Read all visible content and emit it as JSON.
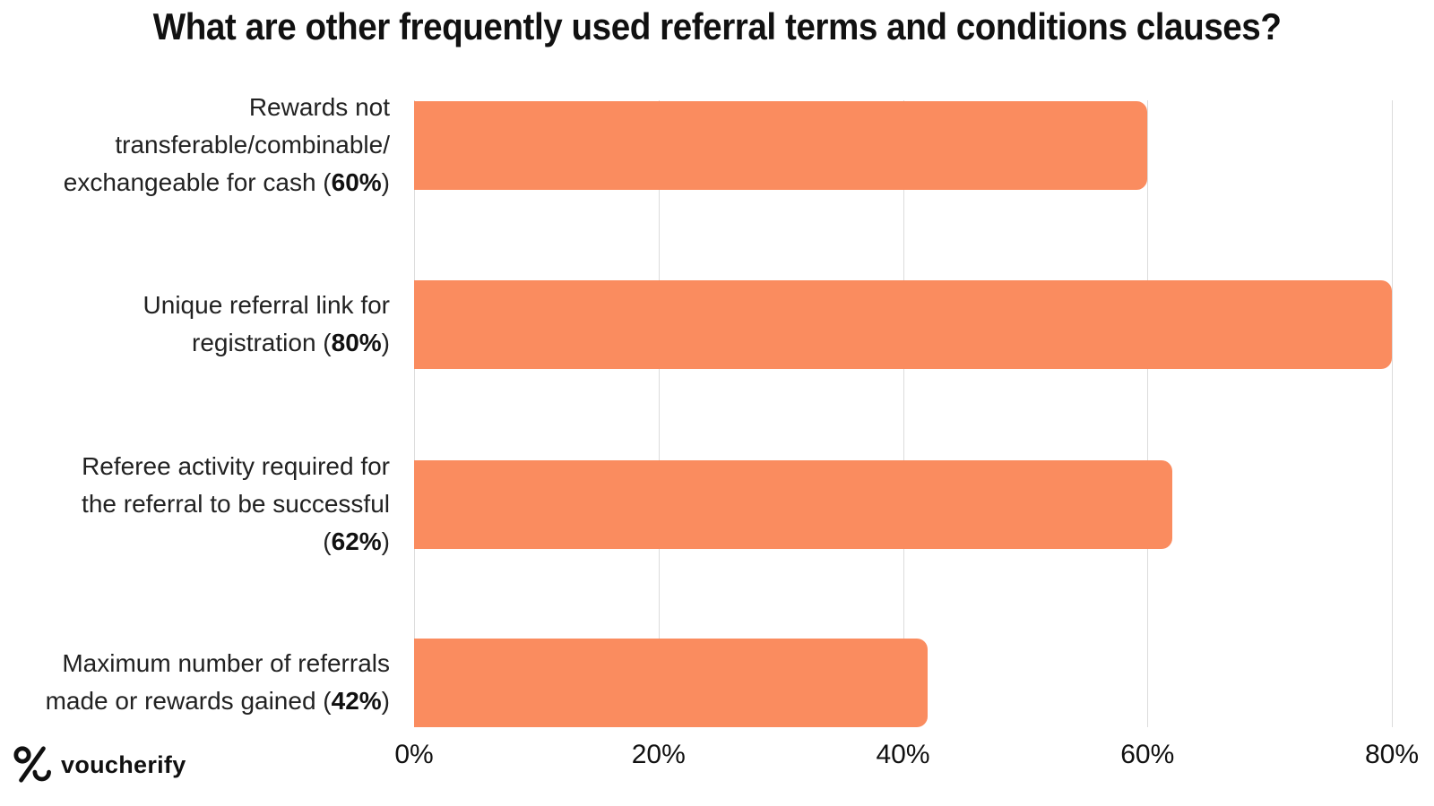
{
  "title": "What are other frequently used referral terms and conditions clauses?",
  "chart_data": {
    "type": "bar",
    "orientation": "horizontal",
    "title": "What are other frequently used referral terms and conditions clauses?",
    "categories": [
      "Rewards not transferable/combinable/exchangeable for cash",
      "Unique referral link for registration",
      "Referee activity required for the referral to be successful",
      "Maximum number of referrals made or rewards gained"
    ],
    "values": [
      60,
      80,
      62,
      42
    ],
    "value_labels": [
      "60%",
      "80%",
      "62%",
      "42%"
    ],
    "label_lines": [
      [
        {
          "pre": "Rewards not"
        },
        {
          "pre": "transferable/combinable/"
        },
        {
          "pre": "exchangeable for cash (",
          "bold": "60%",
          "post": ")"
        }
      ],
      [
        {
          "pre": "Unique referral link for"
        },
        {
          "pre": "registration (",
          "bold": "80%",
          "post": ")"
        }
      ],
      [
        {
          "pre": "Referee activity required for"
        },
        {
          "pre": "the referral to be successful"
        },
        {
          "pre": "(",
          "bold": "62%",
          "post": ")"
        }
      ],
      [
        {
          "pre": "Maximum number of referrals"
        },
        {
          "pre": "made or rewards gained (",
          "bold": "42%",
          "post": ")"
        }
      ]
    ],
    "x_ticks": [
      {
        "label": "0%",
        "value": 0
      },
      {
        "label": "20%",
        "value": 20
      },
      {
        "label": "40%",
        "value": 40
      },
      {
        "label": "60%",
        "value": 60
      },
      {
        "label": "80%",
        "value": 80
      }
    ],
    "xlim": [
      0,
      80
    ],
    "grid": "vertical-only",
    "legend": "none",
    "bar_color": "#FA8C5F",
    "gridline_color": "#DCDCDC",
    "text_color": "#111111"
  },
  "footer": {
    "logo_icon": "voucherify-percent-logo",
    "logo_text": "voucherify"
  }
}
